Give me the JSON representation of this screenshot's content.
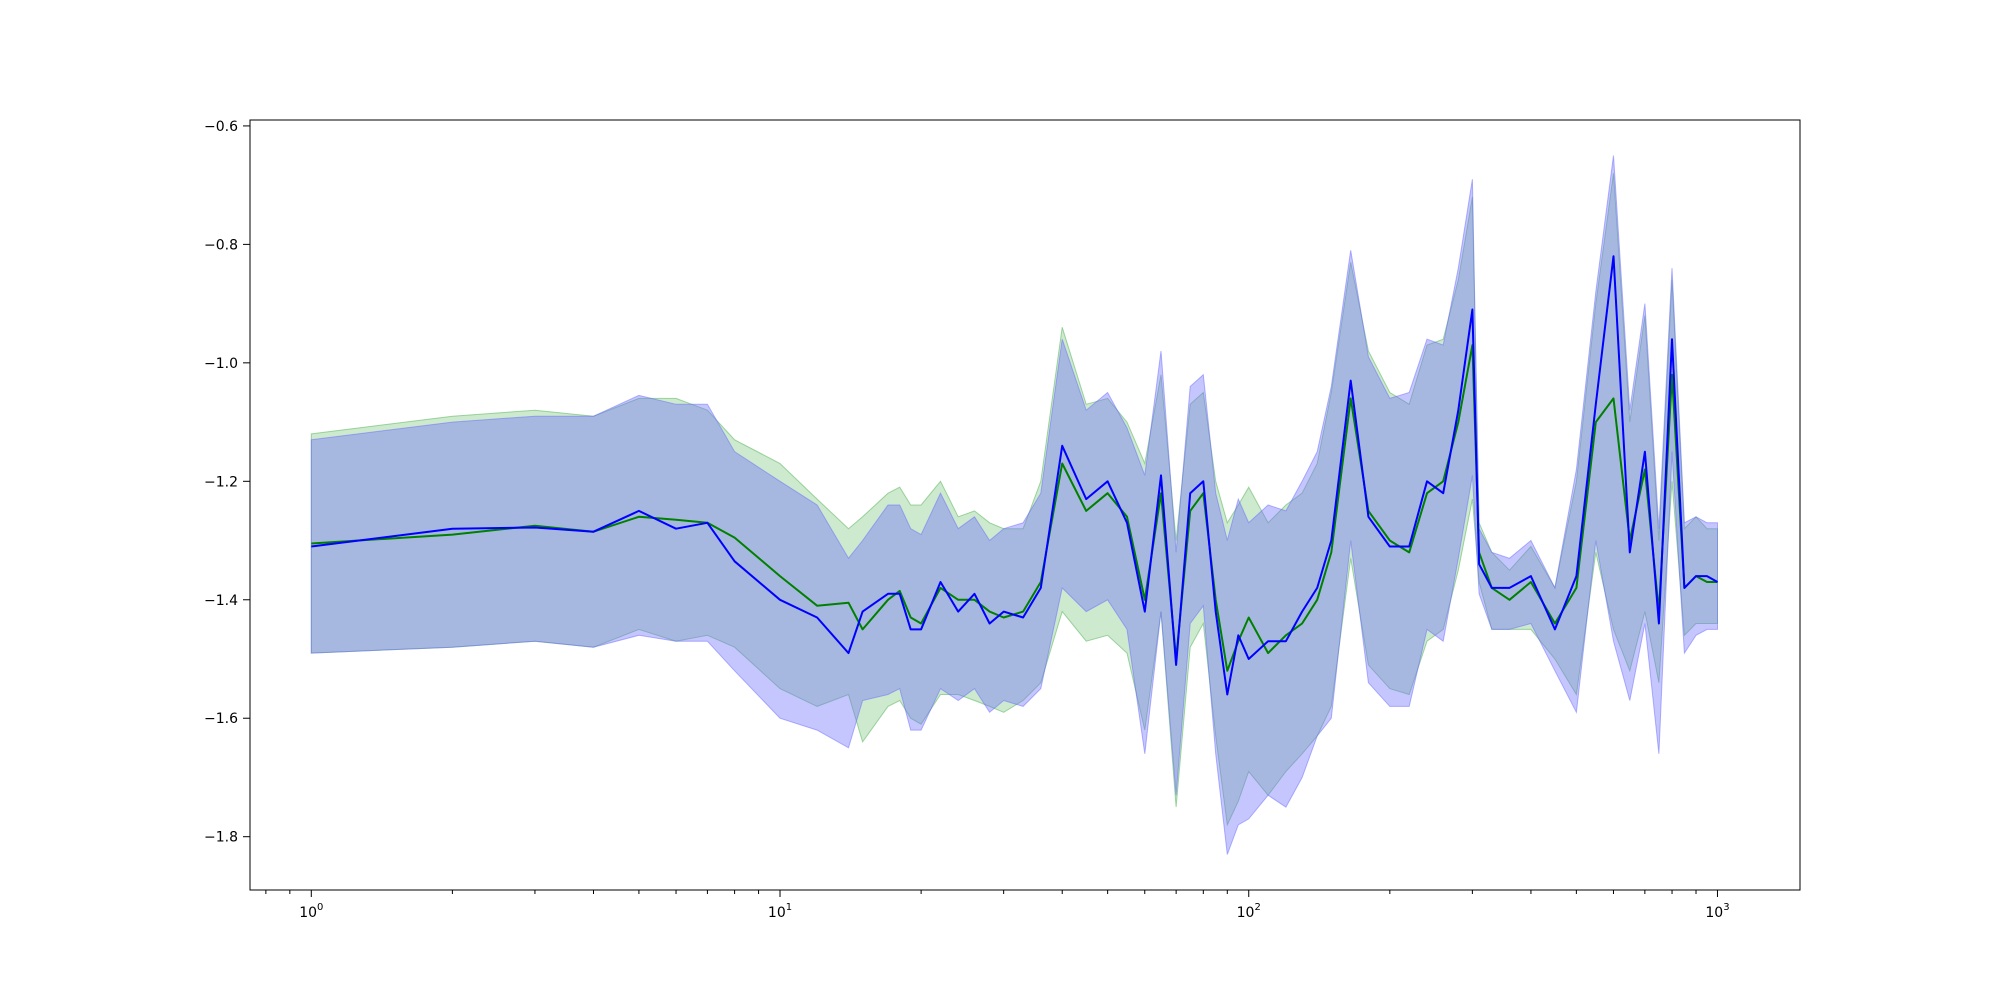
{
  "chart_data": {
    "type": "line",
    "title": "",
    "xlabel": "",
    "ylabel": "",
    "x_scale": "log",
    "xlim": [
      0.74,
      1500
    ],
    "ylim": [
      -1.89,
      -0.59
    ],
    "grid": false,
    "legend": null,
    "x_ticks": [
      {
        "value": 1,
        "base": "10",
        "exp": "0"
      },
      {
        "value": 10,
        "base": "10",
        "exp": "1"
      },
      {
        "value": 100,
        "base": "10",
        "exp": "2"
      },
      {
        "value": 1000,
        "base": "10",
        "exp": "3"
      }
    ],
    "y_ticks": [
      {
        "value": -1.8,
        "label": "−1.8"
      },
      {
        "value": -1.6,
        "label": "−1.6"
      },
      {
        "value": -1.4,
        "label": "−1.4"
      },
      {
        "value": -1.2,
        "label": "−1.2"
      },
      {
        "value": -1.0,
        "label": "−1.0"
      },
      {
        "value": -0.8,
        "label": "−0.8"
      },
      {
        "value": -0.6,
        "label": "−0.6"
      }
    ],
    "series": [
      {
        "color": "#008000",
        "band_color": "#4caf50",
        "band_opacity": 0.28,
        "x": [
          1,
          2,
          3,
          4,
          5,
          6,
          7,
          8,
          10,
          12,
          14,
          15,
          17,
          18,
          19,
          20,
          22,
          24,
          26,
          28,
          30,
          33,
          36,
          40,
          45,
          50,
          55,
          60,
          65,
          70,
          75,
          80,
          85,
          90,
          95,
          100,
          110,
          120,
          130,
          140,
          150,
          165,
          180,
          200,
          220,
          240,
          260,
          280,
          300,
          310,
          330,
          360,
          400,
          450,
          500,
          550,
          600,
          650,
          700,
          750,
          800,
          850,
          900,
          950,
          1000
        ],
        "y": [
          -1.305,
          -1.29,
          -1.275,
          -1.285,
          -1.26,
          -1.265,
          -1.27,
          -1.295,
          -1.36,
          -1.41,
          -1.405,
          -1.45,
          -1.4,
          -1.385,
          -1.43,
          -1.44,
          -1.38,
          -1.4,
          -1.4,
          -1.42,
          -1.43,
          -1.42,
          -1.37,
          -1.17,
          -1.25,
          -1.22,
          -1.26,
          -1.4,
          -1.22,
          -1.5,
          -1.25,
          -1.22,
          -1.4,
          -1.52,
          -1.47,
          -1.43,
          -1.49,
          -1.46,
          -1.44,
          -1.4,
          -1.32,
          -1.06,
          -1.25,
          -1.3,
          -1.32,
          -1.22,
          -1.2,
          -1.1,
          -0.97,
          -1.32,
          -1.38,
          -1.4,
          -1.37,
          -1.44,
          -1.38,
          -1.1,
          -1.06,
          -1.3,
          -1.18,
          -1.42,
          -1.02,
          -1.38,
          -1.36,
          -1.37,
          -1.37
        ],
        "upper": [
          -1.12,
          -1.09,
          -1.08,
          -1.09,
          -1.06,
          -1.06,
          -1.08,
          -1.13,
          -1.17,
          -1.23,
          -1.28,
          -1.26,
          -1.22,
          -1.21,
          -1.24,
          -1.24,
          -1.2,
          -1.26,
          -1.25,
          -1.27,
          -1.28,
          -1.28,
          -1.2,
          -0.94,
          -1.07,
          -1.06,
          -1.1,
          -1.17,
          -1.02,
          -1.3,
          -1.07,
          -1.05,
          -1.2,
          -1.27,
          -1.24,
          -1.21,
          -1.27,
          -1.24,
          -1.22,
          -1.17,
          -1.05,
          -0.83,
          -0.98,
          -1.05,
          -1.07,
          -0.97,
          -0.96,
          -0.86,
          -0.72,
          -1.27,
          -1.32,
          -1.35,
          -1.31,
          -1.38,
          -1.2,
          -0.9,
          -0.68,
          -1.1,
          -0.92,
          -1.3,
          -0.86,
          -1.28,
          -1.26,
          -1.28,
          -1.28
        ],
        "lower": [
          -1.49,
          -1.48,
          -1.47,
          -1.48,
          -1.45,
          -1.47,
          -1.46,
          -1.48,
          -1.55,
          -1.58,
          -1.56,
          -1.64,
          -1.58,
          -1.57,
          -1.6,
          -1.61,
          -1.56,
          -1.56,
          -1.57,
          -1.58,
          -1.59,
          -1.57,
          -1.54,
          -1.42,
          -1.47,
          -1.46,
          -1.49,
          -1.62,
          -1.42,
          -1.75,
          -1.48,
          -1.44,
          -1.63,
          -1.78,
          -1.74,
          -1.69,
          -1.73,
          -1.69,
          -1.66,
          -1.63,
          -1.58,
          -1.33,
          -1.51,
          -1.55,
          -1.56,
          -1.47,
          -1.45,
          -1.35,
          -1.23,
          -1.37,
          -1.45,
          -1.45,
          -1.45,
          -1.5,
          -1.56,
          -1.32,
          -1.45,
          -1.52,
          -1.42,
          -1.54,
          -1.2,
          -1.46,
          -1.44,
          -1.44,
          -1.44
        ]
      },
      {
        "color": "#0000ff",
        "band_color": "#6a6aff",
        "band_opacity": 0.38,
        "x": [
          1,
          2,
          3,
          4,
          5,
          6,
          7,
          8,
          10,
          12,
          14,
          15,
          17,
          18,
          19,
          20,
          22,
          24,
          26,
          28,
          30,
          33,
          36,
          40,
          45,
          50,
          55,
          60,
          65,
          70,
          75,
          80,
          85,
          90,
          95,
          100,
          110,
          120,
          130,
          140,
          150,
          165,
          180,
          200,
          220,
          240,
          260,
          280,
          300,
          310,
          330,
          360,
          400,
          450,
          500,
          550,
          600,
          650,
          700,
          750,
          800,
          850,
          900,
          950,
          1000
        ],
        "y": [
          -1.31,
          -1.28,
          -1.278,
          -1.285,
          -1.25,
          -1.28,
          -1.27,
          -1.335,
          -1.4,
          -1.43,
          -1.49,
          -1.42,
          -1.39,
          -1.39,
          -1.45,
          -1.45,
          -1.37,
          -1.42,
          -1.39,
          -1.44,
          -1.42,
          -1.43,
          -1.38,
          -1.14,
          -1.23,
          -1.2,
          -1.27,
          -1.42,
          -1.19,
          -1.51,
          -1.22,
          -1.2,
          -1.42,
          -1.56,
          -1.46,
          -1.5,
          -1.47,
          -1.47,
          -1.42,
          -1.38,
          -1.3,
          -1.03,
          -1.26,
          -1.31,
          -1.31,
          -1.2,
          -1.22,
          -1.08,
          -0.91,
          -1.34,
          -1.38,
          -1.38,
          -1.36,
          -1.45,
          -1.36,
          -1.07,
          -0.82,
          -1.32,
          -1.15,
          -1.44,
          -0.96,
          -1.38,
          -1.36,
          -1.36,
          -1.37
        ],
        "upper": [
          -1.13,
          -1.1,
          -1.09,
          -1.09,
          -1.055,
          -1.07,
          -1.07,
          -1.15,
          -1.2,
          -1.24,
          -1.33,
          -1.3,
          -1.24,
          -1.24,
          -1.28,
          -1.29,
          -1.22,
          -1.28,
          -1.26,
          -1.3,
          -1.28,
          -1.27,
          -1.22,
          -0.96,
          -1.08,
          -1.05,
          -1.11,
          -1.19,
          -0.98,
          -1.32,
          -1.04,
          -1.02,
          -1.22,
          -1.3,
          -1.23,
          -1.27,
          -1.24,
          -1.25,
          -1.2,
          -1.15,
          -1.04,
          -0.81,
          -0.99,
          -1.06,
          -1.05,
          -0.96,
          -0.97,
          -0.84,
          -0.69,
          -1.28,
          -1.32,
          -1.33,
          -1.3,
          -1.38,
          -1.18,
          -0.88,
          -0.65,
          -1.08,
          -0.9,
          -1.28,
          -0.84,
          -1.27,
          -1.26,
          -1.27,
          -1.27
        ],
        "lower": [
          -1.49,
          -1.48,
          -1.47,
          -1.48,
          -1.46,
          -1.47,
          -1.47,
          -1.52,
          -1.6,
          -1.62,
          -1.65,
          -1.57,
          -1.56,
          -1.55,
          -1.62,
          -1.62,
          -1.55,
          -1.57,
          -1.55,
          -1.59,
          -1.57,
          -1.58,
          -1.55,
          -1.38,
          -1.42,
          -1.4,
          -1.45,
          -1.66,
          -1.42,
          -1.73,
          -1.44,
          -1.41,
          -1.66,
          -1.83,
          -1.78,
          -1.77,
          -1.73,
          -1.75,
          -1.7,
          -1.63,
          -1.6,
          -1.3,
          -1.54,
          -1.58,
          -1.58,
          -1.45,
          -1.47,
          -1.33,
          -1.19,
          -1.39,
          -1.45,
          -1.45,
          -1.44,
          -1.52,
          -1.59,
          -1.3,
          -1.47,
          -1.57,
          -1.44,
          -1.66,
          -1.15,
          -1.49,
          -1.46,
          -1.45,
          -1.45
        ]
      }
    ]
  }
}
